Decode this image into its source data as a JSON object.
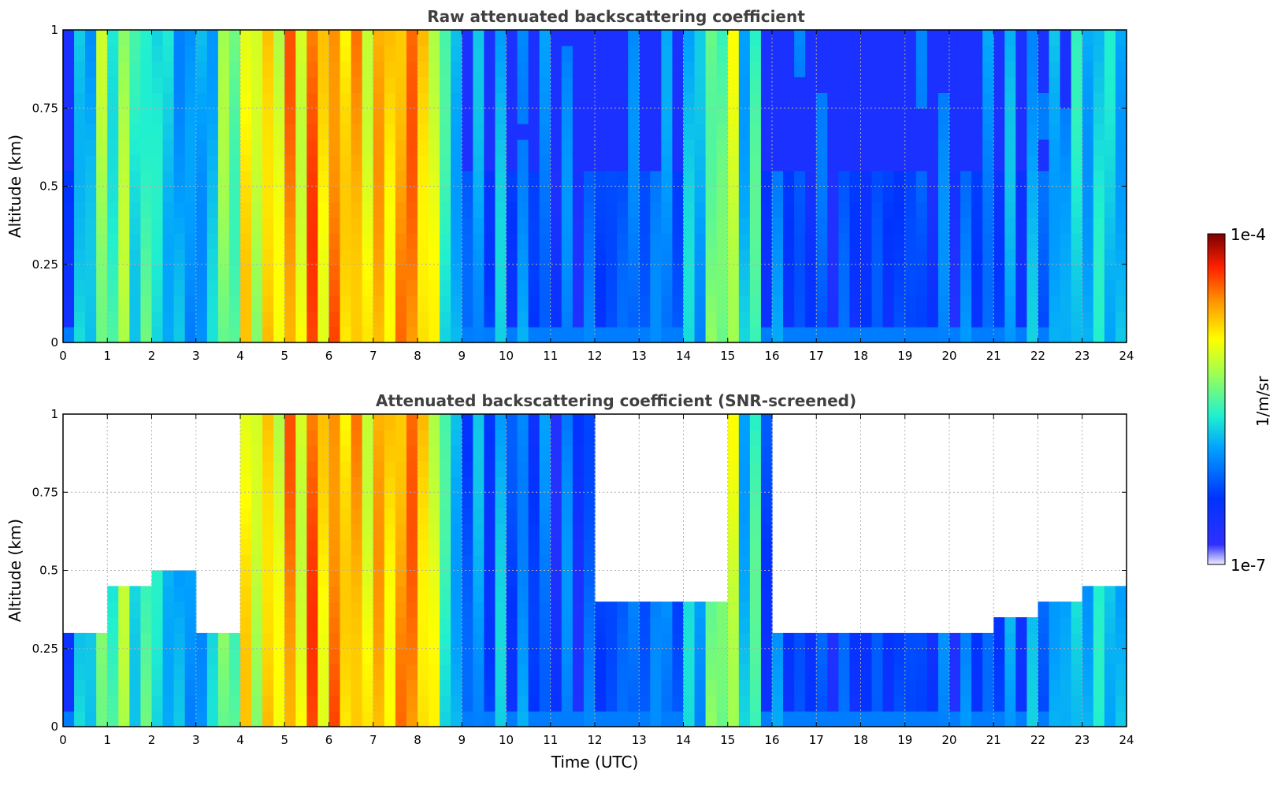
{
  "chart_data": [
    {
      "type": "heatmap",
      "title": "Raw attenuated backscattering coefficient",
      "xlabel": "",
      "ylabel": "Altitude (km)",
      "xlim": [
        0,
        24
      ],
      "ylim": [
        0,
        1
      ],
      "xticks": [
        0,
        1,
        2,
        3,
        4,
        5,
        6,
        7,
        8,
        9,
        10,
        11,
        12,
        13,
        14,
        15,
        16,
        17,
        18,
        19,
        20,
        21,
        22,
        23,
        24
      ],
      "xtick_labels": [
        "0",
        "1",
        "2",
        "3",
        "4",
        "5",
        "6",
        "7",
        "8",
        "9",
        "10",
        "11",
        "12",
        "13",
        "14",
        "15",
        "16",
        "17",
        "18",
        "19",
        "20",
        "21",
        "22",
        "23",
        "24"
      ],
      "yticks": [
        0,
        0.25,
        0.5,
        0.75,
        1
      ],
      "ytick_labels": [
        "0",
        "0.25",
        "0.5",
        "0.75",
        "1"
      ],
      "grid": true,
      "screened": false
    },
    {
      "type": "heatmap",
      "title": "Attenuated backscattering coefficient (SNR-screened)",
      "xlabel": "Time (UTC)",
      "ylabel": "Altitude (km)",
      "xlim": [
        0,
        24
      ],
      "ylim": [
        0,
        1
      ],
      "xticks": [
        0,
        1,
        2,
        3,
        4,
        5,
        6,
        7,
        8,
        9,
        10,
        11,
        12,
        13,
        14,
        15,
        16,
        17,
        18,
        19,
        20,
        21,
        22,
        23,
        24
      ],
      "xtick_labels": [
        "0",
        "1",
        "2",
        "3",
        "4",
        "5",
        "6",
        "7",
        "8",
        "9",
        "10",
        "11",
        "12",
        "13",
        "14",
        "15",
        "16",
        "17",
        "18",
        "19",
        "20",
        "21",
        "22",
        "23",
        "24"
      ],
      "yticks": [
        0,
        0.25,
        0.5,
        0.75,
        1
      ],
      "ytick_labels": [
        "0",
        "0.25",
        "0.5",
        "0.75",
        "1"
      ],
      "grid": true,
      "screened": true
    }
  ],
  "colorbar": {
    "label": "1/m/sr",
    "max_label": "1e-4",
    "min_label": "1e-7",
    "colormap": "jet"
  },
  "profiles": {
    "columns": 24,
    "intensity_by_hour_index": [
      0.22,
      0.55,
      0.45,
      0.3,
      0.62,
      0.72,
      0.78,
      0.7,
      0.82,
      0.28,
      0.3,
      0.22,
      0.22,
      0.28,
      0.3,
      0.6,
      0.25,
      0.2,
      0.2,
      0.22,
      0.22,
      0.25,
      0.3,
      0.4
    ],
    "screen_top_km": [
      0.32,
      0.45,
      0.5,
      0.32,
      1.0,
      1.0,
      1.0,
      1.0,
      1.0,
      1.0,
      1.0,
      1.0,
      0.38,
      0.42,
      0.42,
      1.0,
      0.3,
      0.3,
      0.3,
      0.3,
      0.3,
      0.35,
      0.4,
      0.45
    ]
  }
}
